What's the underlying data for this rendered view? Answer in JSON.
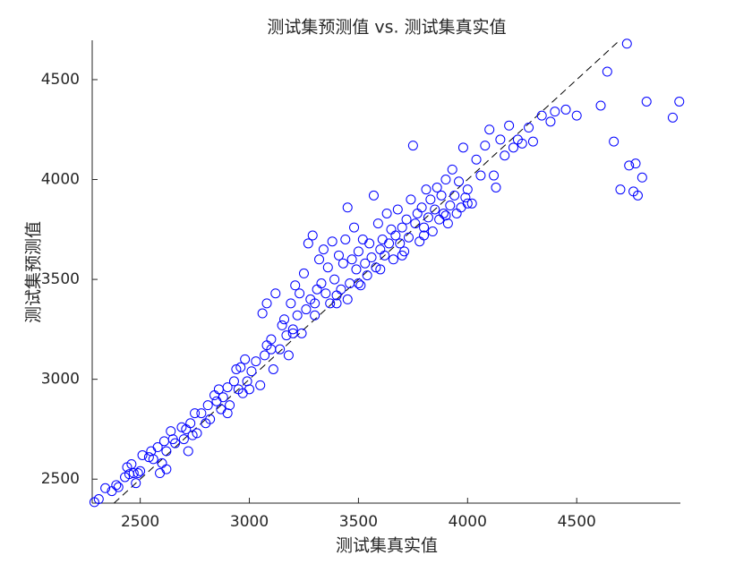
{
  "chart_data": {
    "type": "scatter",
    "title": "测试集预测值 vs. 测试集真实值",
    "x_label": "测试集真实值",
    "y_label": "测试集预测值",
    "color": "#0000ff",
    "xlim": [
      2280,
      4975
    ],
    "ylim": [
      2380,
      4697
    ],
    "xticks": [
      2500,
      3000,
      3500,
      4000,
      4500
    ],
    "yticks": [
      2500,
      3000,
      3500,
      4000,
      4500
    ],
    "reference_line": {
      "x": [
        2380,
        4690
      ],
      "y": [
        2380,
        4690
      ]
    },
    "x": [
      2290,
      2310,
      2340,
      2370,
      2390,
      2400,
      2430,
      2440,
      2450,
      2460,
      2470,
      2480,
      2490,
      2500,
      2510,
      2540,
      2550,
      2560,
      2580,
      2590,
      2600,
      2610,
      2620,
      2620,
      2640,
      2650,
      2660,
      2690,
      2700,
      2710,
      2720,
      2730,
      2740,
      2750,
      2760,
      2780,
      2800,
      2810,
      2820,
      2840,
      2850,
      2860,
      2870,
      2880,
      2900,
      2900,
      2910,
      2930,
      2940,
      2950,
      2960,
      2970,
      2980,
      2990,
      3000,
      3010,
      3030,
      3050,
      3060,
      3070,
      3080,
      3080,
      3100,
      3110,
      3120,
      3140,
      3150,
      3160,
      3170,
      3180,
      3190,
      3200,
      3210,
      3220,
      3230,
      3240,
      3250,
      3260,
      3270,
      3280,
      3290,
      3300,
      3310,
      3320,
      3330,
      3340,
      3350,
      3360,
      3370,
      3380,
      3390,
      3400,
      3410,
      3420,
      3430,
      3440,
      3450,
      3460,
      3470,
      3480,
      3490,
      3500,
      3510,
      3520,
      3530,
      3540,
      3550,
      3560,
      3570,
      3580,
      3590,
      3600,
      3610,
      3620,
      3630,
      3640,
      3650,
      3660,
      3670,
      3680,
      3690,
      3700,
      3710,
      3720,
      3730,
      3740,
      3750,
      3760,
      3770,
      3780,
      3790,
      3800,
      3810,
      3820,
      3830,
      3840,
      3850,
      3860,
      3870,
      3880,
      3890,
      3900,
      3910,
      3920,
      3930,
      3940,
      3950,
      3960,
      3970,
      3980,
      3990,
      4000,
      4020,
      4040,
      4060,
      4080,
      4100,
      4120,
      4130,
      4150,
      4170,
      4190,
      4210,
      4230,
      4250,
      4280,
      4300,
      4340,
      4380,
      4400,
      4450,
      4500,
      4610,
      4640,
      4670,
      4700,
      4730,
      4740,
      4760,
      4770,
      4780,
      4800,
      4820,
      4940,
      4970,
      3100,
      3200,
      3300,
      3400,
      3450,
      3500,
      3600,
      3700,
      3800,
      3900,
      4000
    ],
    "values": [
      2385,
      2400,
      2455,
      2440,
      2470,
      2460,
      2510,
      2560,
      2525,
      2575,
      2530,
      2480,
      2530,
      2540,
      2620,
      2610,
      2640,
      2600,
      2660,
      2530,
      2580,
      2690,
      2640,
      2550,
      2740,
      2700,
      2680,
      2760,
      2700,
      2750,
      2640,
      2780,
      2720,
      2830,
      2730,
      2830,
      2780,
      2870,
      2800,
      2920,
      2890,
      2950,
      2850,
      2910,
      2830,
      2960,
      2870,
      2990,
      3050,
      2950,
      3060,
      2930,
      3100,
      2990,
      2950,
      3040,
      3090,
      2970,
      3330,
      3120,
      3170,
      3380,
      3200,
      3050,
      3430,
      3150,
      3270,
      3300,
      3220,
      3120,
      3380,
      3250,
      3470,
      3320,
      3430,
      3230,
      3530,
      3350,
      3680,
      3400,
      3720,
      3380,
      3450,
      3600,
      3480,
      3650,
      3430,
      3560,
      3380,
      3690,
      3500,
      3420,
      3620,
      3450,
      3580,
      3700,
      3860,
      3480,
      3600,
      3760,
      3550,
      3640,
      3470,
      3700,
      3580,
      3520,
      3680,
      3610,
      3920,
      3560,
      3780,
      3650,
      3700,
      3620,
      3830,
      3680,
      3750,
      3600,
      3720,
      3850,
      3680,
      3760,
      3640,
      3800,
      3710,
      3900,
      4170,
      3780,
      3830,
      3690,
      3860,
      3760,
      3950,
      3810,
      3900,
      3740,
      3850,
      3960,
      3800,
      3920,
      3830,
      4000,
      3780,
      3870,
      4050,
      3920,
      3830,
      3990,
      3860,
      4160,
      3910,
      3950,
      3880,
      4100,
      4020,
      4170,
      4250,
      4020,
      3960,
      4200,
      4120,
      4270,
      4160,
      4200,
      4180,
      4260,
      4190,
      4320,
      4290,
      4340,
      4350,
      4320,
      4370,
      4540,
      4190,
      3950,
      4680,
      4070,
      3940,
      4080,
      3920,
      4010,
      4390,
      4310,
      4390,
      3150,
      3230,
      3320,
      3380,
      3400,
      3480,
      3550,
      3620,
      3720,
      3820,
      3880
    ]
  }
}
